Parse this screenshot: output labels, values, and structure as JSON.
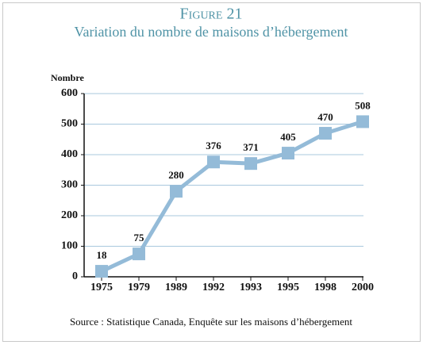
{
  "chart_data": {
    "type": "line",
    "title": "Figure 21",
    "subtitle": "Variation du nombre de maisons d’hébergement",
    "y_label": "Nombre",
    "source": "Source : Statistique Canada, Enquête sur les maisons d’hébergement",
    "categories": [
      "1975",
      "1979",
      "1989",
      "1992",
      "1993",
      "1995",
      "1998",
      "2000"
    ],
    "values": [
      18,
      75,
      280,
      376,
      371,
      405,
      470,
      508
    ],
    "color": "#94bbd8",
    "ylim": [
      0,
      600
    ],
    "yticks": [
      0,
      100,
      200,
      300,
      400,
      500,
      600
    ],
    "grid": true
  }
}
